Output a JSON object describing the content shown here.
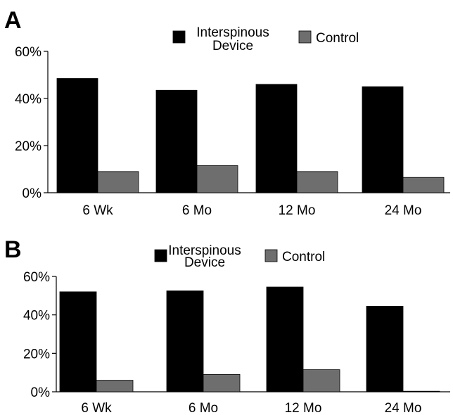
{
  "chart_data": [
    {
      "panel": "A",
      "type": "bar",
      "categories": [
        "6 Wk",
        "6 Mo",
        "12 Mo",
        "24 Mo"
      ],
      "series": [
        {
          "name": "Interspinous Device",
          "color": "#000000",
          "values": [
            48.5,
            43.5,
            46,
            45
          ]
        },
        {
          "name": "Control",
          "color": "#6e6e6e",
          "values": [
            9,
            11.5,
            9,
            6.5
          ]
        }
      ],
      "yticks": [
        "0%",
        "20%",
        "40%",
        "60%"
      ],
      "ylim": [
        0,
        60
      ],
      "legend_labels": [
        "Interspinous",
        "Device",
        "Control"
      ],
      "legend": "top-right"
    },
    {
      "panel": "B",
      "type": "bar",
      "categories": [
        "6 Wk",
        "6 Mo",
        "12 Mo",
        "24 Mo"
      ],
      "series": [
        {
          "name": "Interspinous Device",
          "color": "#000000",
          "values": [
            52,
            52.5,
            54.5,
            44.5
          ]
        },
        {
          "name": "Control",
          "color": "#6e6e6e",
          "values": [
            6,
            9,
            11.5,
            0.3
          ]
        }
      ],
      "yticks": [
        "0%",
        "20%",
        "40%",
        "60%"
      ],
      "ylim": [
        0,
        60
      ],
      "legend_labels": [
        "Interspinous",
        "Device",
        "Control"
      ],
      "legend": "top-right"
    }
  ]
}
